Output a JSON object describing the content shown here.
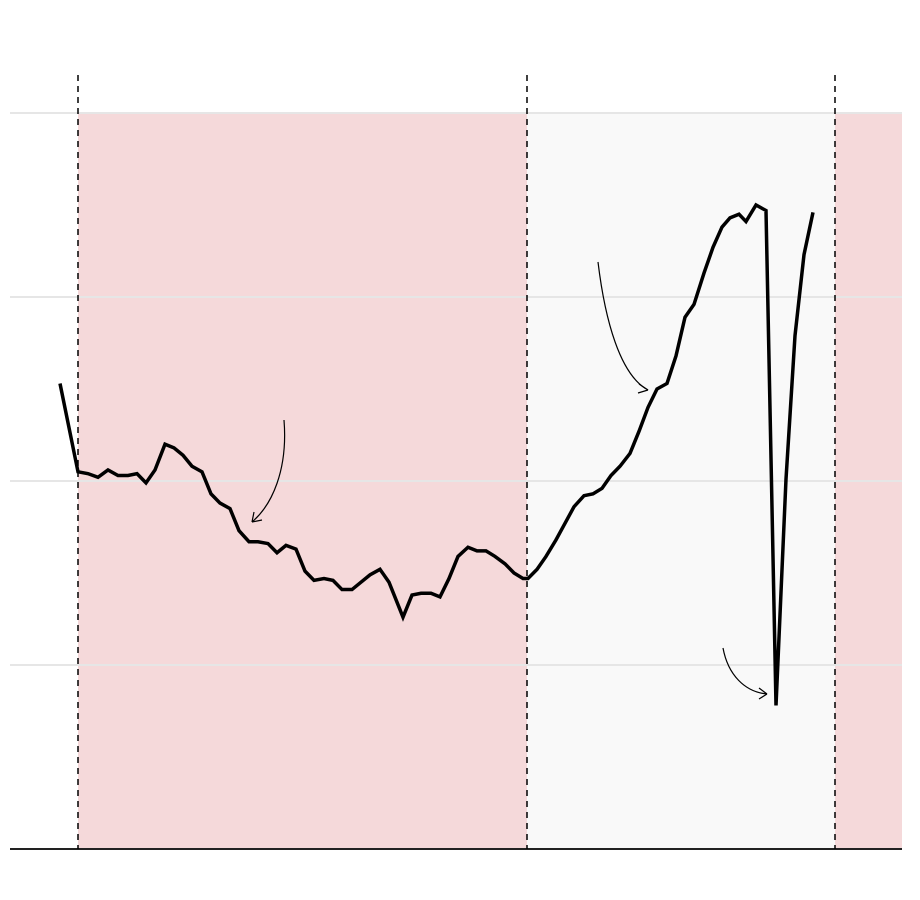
{
  "chart_data": {
    "type": "line",
    "x": [
      50,
      68,
      78,
      88,
      98,
      108,
      118,
      127,
      136,
      145,
      155,
      164,
      173,
      182,
      192,
      201,
      210,
      220,
      229,
      239,
      248,
      258,
      267,
      276,
      286,
      295,
      304,
      314,
      323,
      332,
      342,
      351,
      360,
      370,
      379,
      393,
      402,
      411,
      421,
      430,
      439,
      448,
      458,
      467,
      476,
      485,
      495,
      504,
      513,
      518,
      527,
      536,
      546,
      555,
      564,
      574,
      583,
      592,
      601,
      610,
      620,
      629,
      638,
      647,
      657,
      666,
      675,
      684,
      694,
      703,
      712,
      720,
      729,
      736,
      746,
      756,
      766,
      776,
      785,
      794,
      803
    ],
    "series": [
      {
        "color": "#000000",
        "values": [
          253,
          205,
          204,
          202,
          206,
          203,
          203,
          204,
          199,
          206,
          220,
          218,
          214,
          208,
          205,
          193,
          188,
          185,
          173,
          167,
          167,
          166,
          161,
          165,
          163,
          151,
          146,
          147,
          146,
          141,
          141,
          145,
          149,
          152,
          145,
          126,
          138,
          139,
          139,
          137,
          147,
          159,
          164,
          162,
          162,
          159,
          155,
          150,
          147,
          147,
          152,
          159,
          168,
          177,
          186,
          192,
          193,
          196,
          203,
          208,
          215,
          227,
          240,
          250,
          253,
          268,
          289,
          296,
          313,
          327,
          338,
          343,
          345,
          341,
          350,
          347,
          78,
          201,
          279,
          323,
          346
        ]
      }
    ],
    "spans": [
      {
        "start": 68,
        "end": 517,
        "color": "#f5d9da"
      },
      {
        "start": 517,
        "end": 825,
        "color": "#f9f9f9"
      },
      {
        "start": 825,
        "end": 892,
        "color": "#f5d9da"
      }
    ],
    "vlines": [
      68,
      517,
      825
    ],
    "xlim": [
      0,
      892
    ],
    "ylim": [
      0,
      400
    ],
    "yticks": [
      0,
      100,
      200,
      300,
      400
    ],
    "grid": true
  }
}
